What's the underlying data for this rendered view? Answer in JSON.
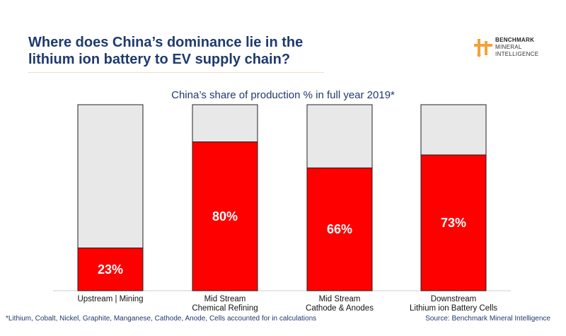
{
  "header": {
    "title": "Where does China’s dominance lie in the lithium ion battery to EV supply chain?"
  },
  "logo": {
    "line1": "BENCHMARK",
    "line2": "MINERAL",
    "line3": "INTELLIGENCE",
    "colors": {
      "accent": "#f2a33a"
    }
  },
  "chart_data": {
    "type": "bar",
    "stacked": true,
    "title": "China’s share of production % in full year 2019*",
    "xlabel": "",
    "ylabel": "",
    "ylim": [
      0,
      100
    ],
    "categories": [
      [
        "Upstream | Mining"
      ],
      [
        "Mid Stream",
        "Chemical Refining"
      ],
      [
        "Mid Stream",
        "Cathode & Anodes"
      ],
      [
        "Downstream",
        "Lithium ion Battery Cells"
      ]
    ],
    "values": [
      23,
      80,
      66,
      73
    ],
    "data_labels": [
      "23%",
      "80%",
      "66%",
      "73%"
    ],
    "colors": {
      "share": "#ff0000",
      "remainder": "#e8e8e8",
      "outline": "#222222"
    },
    "grid": false,
    "legend": "none"
  },
  "footer": {
    "footnote": "*Lithium, Cobalt, Nickel, Graphite, Manganese, Cathode, Anode, Cells accounted for in calculations",
    "source": "Source: Benchmark Mineral Intelligence"
  }
}
